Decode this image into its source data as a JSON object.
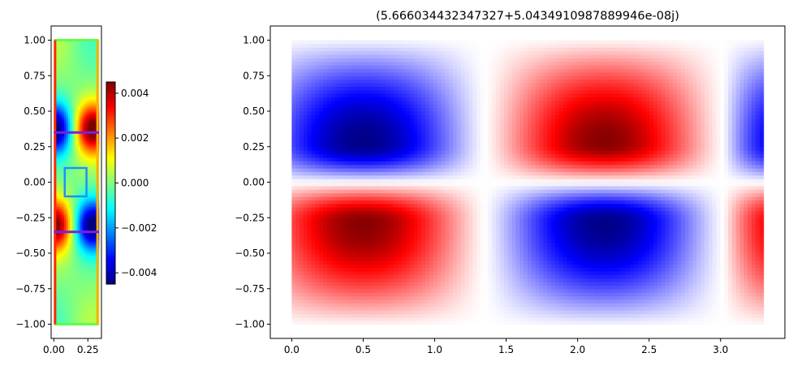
{
  "figure": {
    "background": "#ffffff"
  },
  "chart_data": [
    {
      "type": "heatmap",
      "colormap": "jet",
      "title": "",
      "xlabel": "",
      "ylabel": "",
      "xlim": [
        -0.02,
        0.35
      ],
      "ylim": [
        -1.1,
        1.1
      ],
      "xticks": [
        0.0,
        0.25
      ],
      "xtick_labels": [
        "0.00",
        "0.25"
      ],
      "yticks": [
        1.0,
        0.75,
        0.5,
        0.25,
        0.0,
        -0.25,
        -0.5,
        -0.75,
        -1.0
      ],
      "ytick_labels": [
        "1.00",
        "0.75",
        "0.50",
        "0.25",
        "0.00",
        "−0.25",
        "−0.50",
        "−0.75",
        "−1.00"
      ],
      "field_extent": {
        "x": [
          0.0,
          0.33
        ],
        "y": [
          -1.0,
          1.0
        ]
      },
      "field_peak_y": [
        0.38,
        -0.3
      ],
      "colorbar": {
        "vmin": -0.0045,
        "vmax": 0.0045,
        "ticks": [
          0.004,
          0.002,
          0.0,
          -0.002,
          -0.004
        ],
        "tick_labels": [
          "0.004",
          "0.002",
          "0.000",
          "−0.002",
          "−0.004"
        ]
      },
      "overlays": {
        "horizontal_lines_y": [
          0.35,
          -0.35
        ],
        "horizontal_line_color": "#7a1fe0",
        "box": {
          "x": [
            0.08,
            0.24
          ],
          "y": [
            -0.1,
            0.1
          ],
          "color": "#1e90ff"
        },
        "border_left_color": "#ff2a00",
        "border_right_color": "#ffb000",
        "border_top_bottom_color": "#5cff4a"
      }
    },
    {
      "type": "heatmap",
      "colormap": "bwr",
      "title": "(5.666034432347327+5.0434910987889946e-08j)",
      "xlabel": "",
      "ylabel": "",
      "xlim": [
        -0.15,
        3.45
      ],
      "ylim": [
        -1.1,
        1.1
      ],
      "xticks": [
        0.0,
        0.5,
        1.0,
        1.5,
        2.0,
        2.5,
        3.0
      ],
      "xtick_labels": [
        "0.0",
        "0.5",
        "1.0",
        "1.5",
        "2.0",
        "2.5",
        "3.0"
      ],
      "yticks": [
        1.0,
        0.75,
        0.5,
        0.25,
        0.0,
        -0.25,
        -0.5,
        -0.75,
        -1.0
      ],
      "ytick_labels": [
        "1.00",
        "0.75",
        "0.50",
        "0.25",
        "0.00",
        "−0.25",
        "−0.50",
        "−0.75",
        "−1.00"
      ],
      "field_extent": {
        "x": [
          0.0,
          3.3
        ],
        "y": [
          -1.0,
          1.0
        ]
      },
      "field_peaks_x": [
        0.5,
        2.2
      ],
      "zero_crossings_x": [
        1.35,
        3.02
      ],
      "peak_y": 0.28
    }
  ]
}
